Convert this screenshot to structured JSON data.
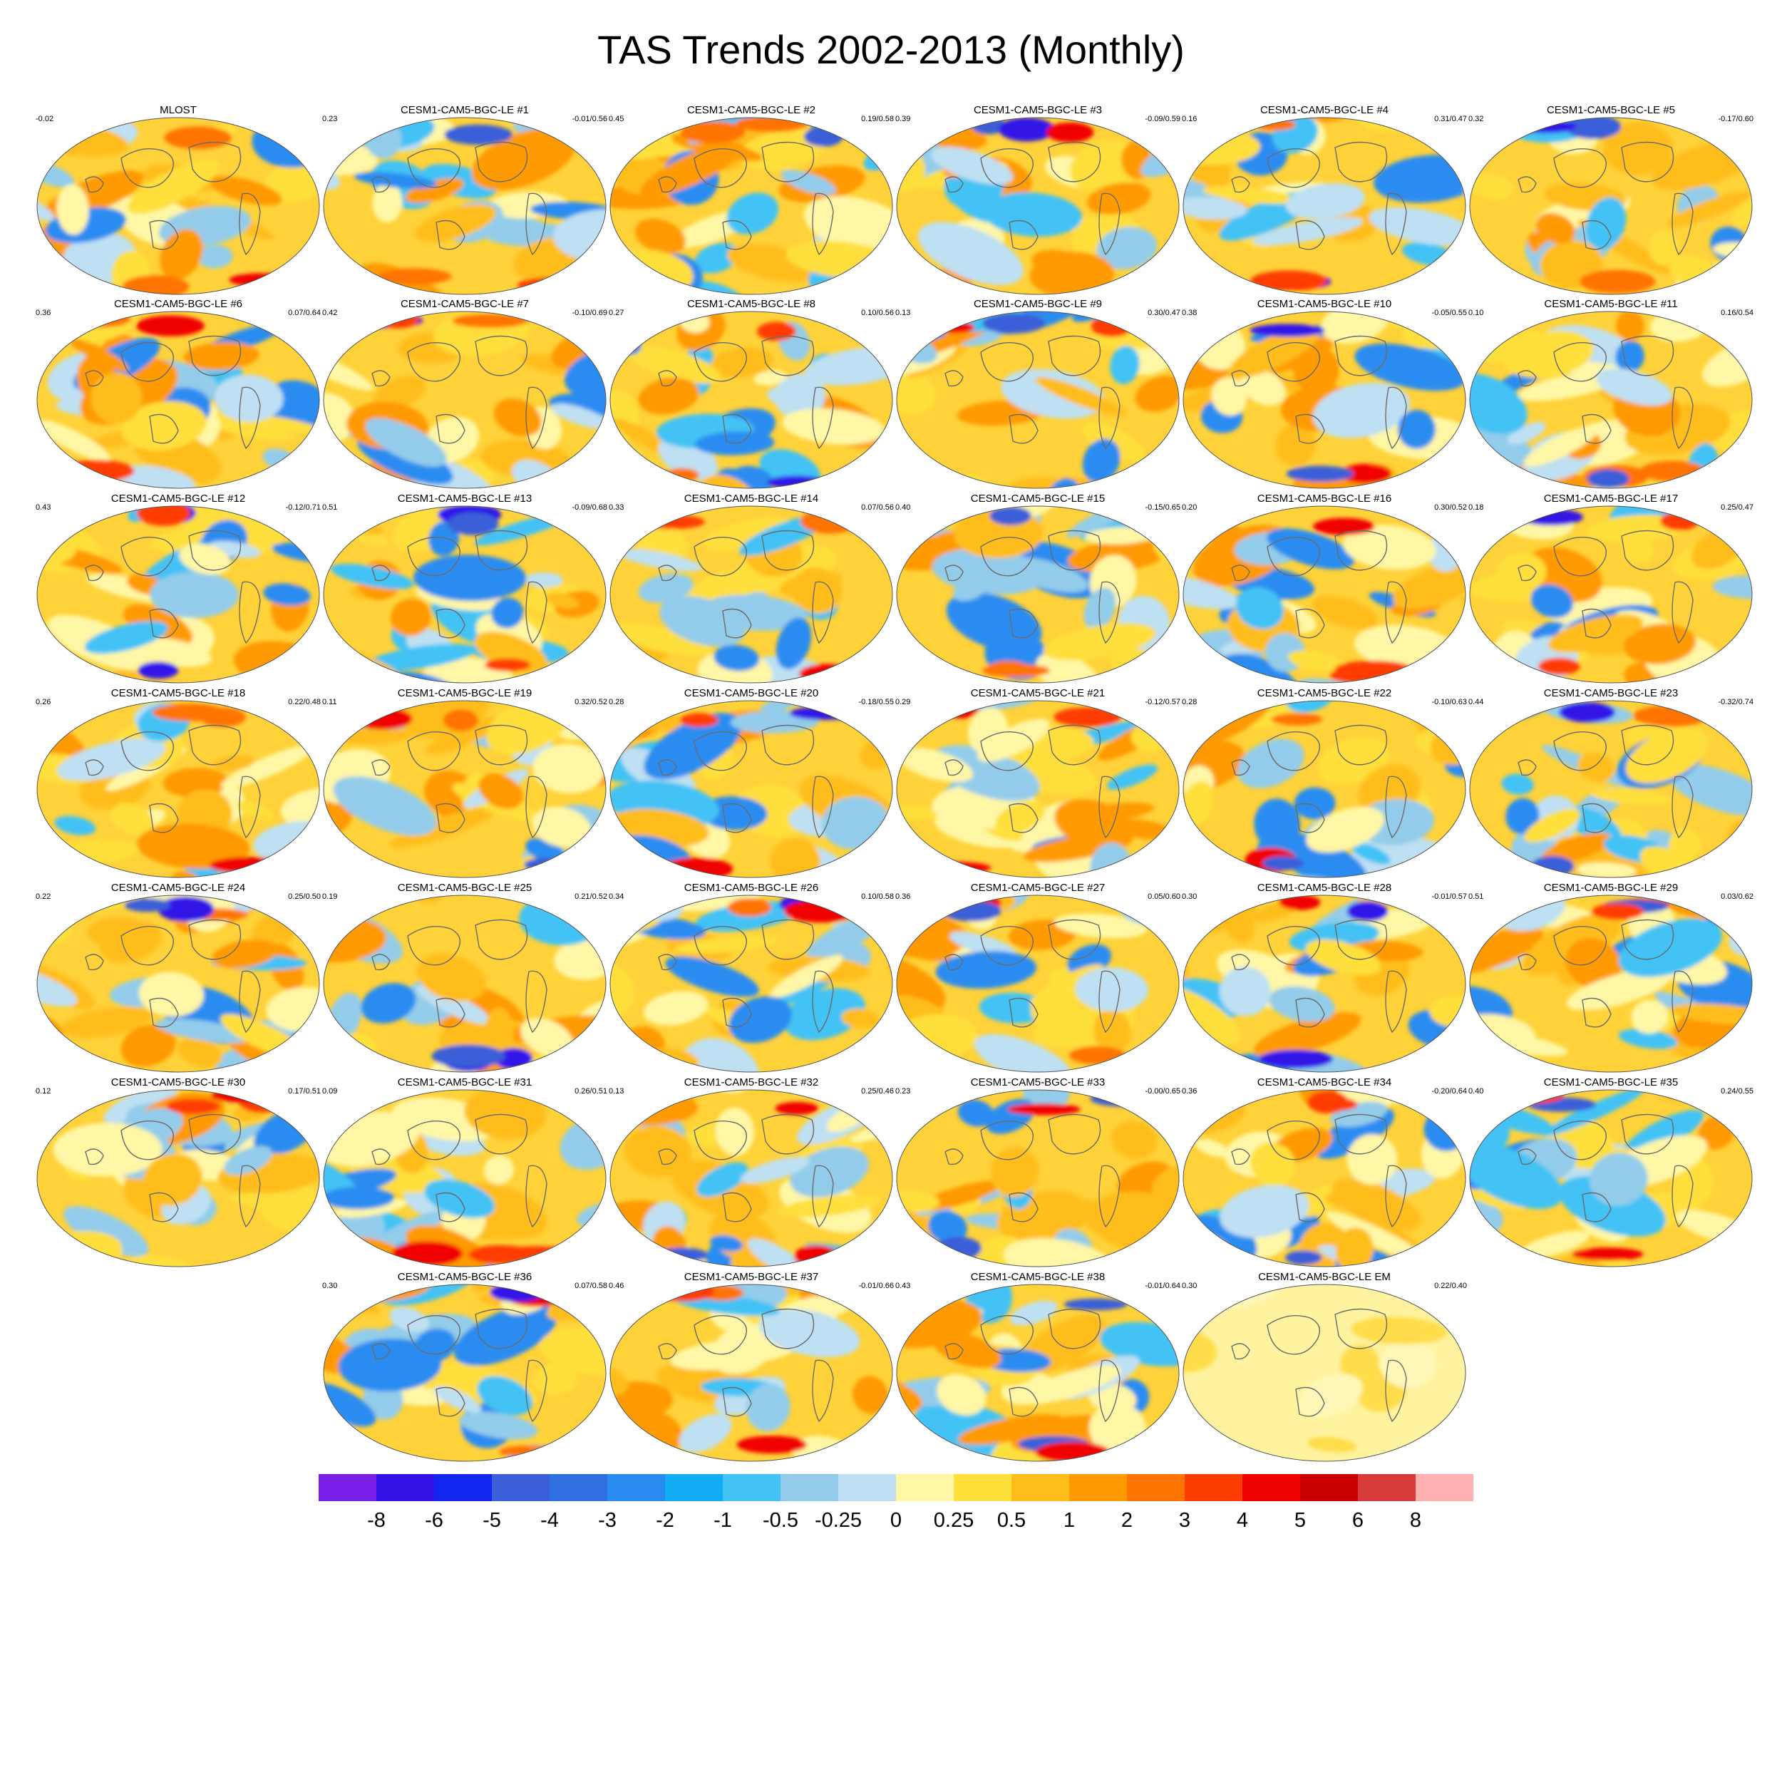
{
  "title": "TAS Trends 2002-2013 (Monthly)",
  "panels": [
    {
      "name": "MLOST",
      "left": "-0.02",
      "right": ""
    },
    {
      "name": "CESM1-CAM5-BGC-LE #1",
      "left": "0.23",
      "right": "-0.01/0.56"
    },
    {
      "name": "CESM1-CAM5-BGC-LE #2",
      "left": "0.45",
      "right": "0.19/0.58"
    },
    {
      "name": "CESM1-CAM5-BGC-LE #3",
      "left": "0.39",
      "right": "-0.09/0.59"
    },
    {
      "name": "CESM1-CAM5-BGC-LE #4",
      "left": "0.16",
      "right": "0.31/0.47"
    },
    {
      "name": "CESM1-CAM5-BGC-LE #5",
      "left": "0.32",
      "right": "-0.17/0.60"
    },
    {
      "name": "CESM1-CAM5-BGC-LE #6",
      "left": "0.36",
      "right": "0.07/0.64"
    },
    {
      "name": "CESM1-CAM5-BGC-LE #7",
      "left": "0.42",
      "right": "-0.10/0.69"
    },
    {
      "name": "CESM1-CAM5-BGC-LE #8",
      "left": "0.27",
      "right": "0.10/0.56"
    },
    {
      "name": "CESM1-CAM5-BGC-LE #9",
      "left": "0.13",
      "right": "0.30/0.47"
    },
    {
      "name": "CESM1-CAM5-BGC-LE #10",
      "left": "0.38",
      "right": "-0.05/0.55"
    },
    {
      "name": "CESM1-CAM5-BGC-LE #11",
      "left": "0.10",
      "right": "0.16/0.54"
    },
    {
      "name": "CESM1-CAM5-BGC-LE #12",
      "left": "0.43",
      "right": "-0.12/0.71"
    },
    {
      "name": "CESM1-CAM5-BGC-LE #13",
      "left": "0.51",
      "right": "-0.09/0.68"
    },
    {
      "name": "CESM1-CAM5-BGC-LE #14",
      "left": "0.33",
      "right": "0.07/0.56"
    },
    {
      "name": "CESM1-CAM5-BGC-LE #15",
      "left": "0.40",
      "right": "-0.15/0.65"
    },
    {
      "name": "CESM1-CAM5-BGC-LE #16",
      "left": "0.20",
      "right": "0.30/0.52"
    },
    {
      "name": "CESM1-CAM5-BGC-LE #17",
      "left": "0.18",
      "right": "0.25/0.47"
    },
    {
      "name": "CESM1-CAM5-BGC-LE #18",
      "left": "0.26",
      "right": "0.22/0.48"
    },
    {
      "name": "CESM1-CAM5-BGC-LE #19",
      "left": "0.11",
      "right": "0.32/0.52"
    },
    {
      "name": "CESM1-CAM5-BGC-LE #20",
      "left": "0.28",
      "right": "-0.18/0.55"
    },
    {
      "name": "CESM1-CAM5-BGC-LE #21",
      "left": "0.29",
      "right": "-0.12/0.57"
    },
    {
      "name": "CESM1-CAM5-BGC-LE #22",
      "left": "0.28",
      "right": "-0.10/0.63"
    },
    {
      "name": "CESM1-CAM5-BGC-LE #23",
      "left": "0.44",
      "right": "-0.32/0.74"
    },
    {
      "name": "CESM1-CAM5-BGC-LE #24",
      "left": "0.22",
      "right": "0.25/0.50"
    },
    {
      "name": "CESM1-CAM5-BGC-LE #25",
      "left": "0.19",
      "right": "0.21/0.52"
    },
    {
      "name": "CESM1-CAM5-BGC-LE #26",
      "left": "0.34",
      "right": "0.10/0.58"
    },
    {
      "name": "CESM1-CAM5-BGC-LE #27",
      "left": "0.36",
      "right": "0.05/0.60"
    },
    {
      "name": "CESM1-CAM5-BGC-LE #28",
      "left": "0.30",
      "right": "-0.01/0.57"
    },
    {
      "name": "CESM1-CAM5-BGC-LE #29",
      "left": "0.51",
      "right": "0.03/0.62"
    },
    {
      "name": "CESM1-CAM5-BGC-LE #30",
      "left": "0.12",
      "right": "0.17/0.51"
    },
    {
      "name": "CESM1-CAM5-BGC-LE #31",
      "left": "0.09",
      "right": "0.26/0.51"
    },
    {
      "name": "CESM1-CAM5-BGC-LE #32",
      "left": "0.13",
      "right": "0.25/0.46"
    },
    {
      "name": "CESM1-CAM5-BGC-LE #33",
      "left": "0.23",
      "right": "-0.00/0.65"
    },
    {
      "name": "CESM1-CAM5-BGC-LE #34",
      "left": "0.36",
      "right": "-0.20/0.64"
    },
    {
      "name": "CESM1-CAM5-BGC-LE #35",
      "left": "0.40",
      "right": "0.24/0.55"
    },
    {
      "name": "CESM1-CAM5-BGC-LE #36",
      "left": "0.30",
      "right": "0.07/0.58"
    },
    {
      "name": "CESM1-CAM5-BGC-LE #37",
      "left": "0.46",
      "right": "-0.01/0.66"
    },
    {
      "name": "CESM1-CAM5-BGC-LE #38",
      "left": "0.43",
      "right": "-0.01/0.64"
    },
    {
      "name": "CESM1-CAM5-BGC-LE EM",
      "left": "0.30",
      "right": "0.22/0.40"
    }
  ],
  "colorbar": {
    "colors": [
      "#7a1fe8",
      "#3212e8",
      "#1326f0",
      "#3a5fd8",
      "#2f6fe0",
      "#2a8cf0",
      "#12aef5",
      "#42c2f5",
      "#93ccea",
      "#bee0f2",
      "#fff7a6",
      "#ffdf3a",
      "#ffbd1a",
      "#ff9a00",
      "#ff7300",
      "#ff3c00",
      "#f10000",
      "#cc0000",
      "#d73a3a",
      "#ffb0b0"
    ],
    "labels": [
      "-8",
      "-6",
      "-5",
      "-4",
      "-3",
      "-2",
      "-1",
      "-0.5",
      "-0.25",
      "0",
      "0.25",
      "0.5",
      "1",
      "2",
      "3",
      "4",
      "5",
      "6",
      "8"
    ]
  },
  "palette": {
    "warm": [
      "#fff7a6",
      "#ffdf3a",
      "#ffbd1a",
      "#ff9a00",
      "#ff7300",
      "#ff3c00",
      "#f10000"
    ],
    "cool": [
      "#bee0f2",
      "#93ccea",
      "#42c2f5",
      "#2a8cf0",
      "#3a5fd8",
      "#3212e8"
    ]
  }
}
